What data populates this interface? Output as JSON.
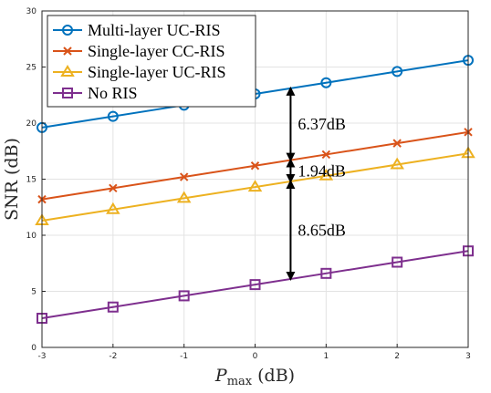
{
  "chart_data": {
    "type": "line",
    "xlabel_main": "P",
    "xlabel_sub": "max",
    "xlabel_unit": "(dB)",
    "ylabel": "SNR (dB)",
    "xlim": [
      -3,
      3
    ],
    "ylim": [
      0,
      30
    ],
    "xticks": [
      -3,
      -2,
      -1,
      0,
      1,
      2,
      3
    ],
    "yticks": [
      0,
      5,
      10,
      15,
      20,
      25,
      30
    ],
    "grid": true,
    "legend_position": "top-left",
    "x": [
      -3,
      -2,
      -1,
      0,
      1,
      2,
      3
    ],
    "series": [
      {
        "name": "Multi-layer UC-RIS",
        "color": "#0072BD",
        "marker": "circle",
        "values": [
          19.6,
          20.6,
          21.6,
          22.6,
          23.6,
          24.6,
          25.6
        ]
      },
      {
        "name": "Single-layer CC-RIS",
        "color": "#D95319",
        "marker": "x",
        "values": [
          13.2,
          14.2,
          15.2,
          16.2,
          17.2,
          18.2,
          19.2
        ]
      },
      {
        "name": "Single-layer UC-RIS",
        "color": "#EDB120",
        "marker": "triangle",
        "values": [
          11.3,
          12.3,
          13.3,
          14.3,
          15.3,
          16.3,
          17.3
        ]
      },
      {
        "name": "No RIS",
        "color": "#7E2F8E",
        "marker": "square",
        "values": [
          2.6,
          3.6,
          4.6,
          5.6,
          6.6,
          7.6,
          8.6
        ]
      }
    ],
    "annotations": [
      {
        "text": "6.37dB",
        "x": 0.5,
        "y_from": 16.7,
        "y_to": 23.1
      },
      {
        "text": "1.94dB",
        "x": 0.5,
        "y_from": 14.8,
        "y_to": 16.7
      },
      {
        "text": "8.65dB",
        "x": 0.5,
        "y_from": 6.1,
        "y_to": 14.8
      }
    ]
  }
}
